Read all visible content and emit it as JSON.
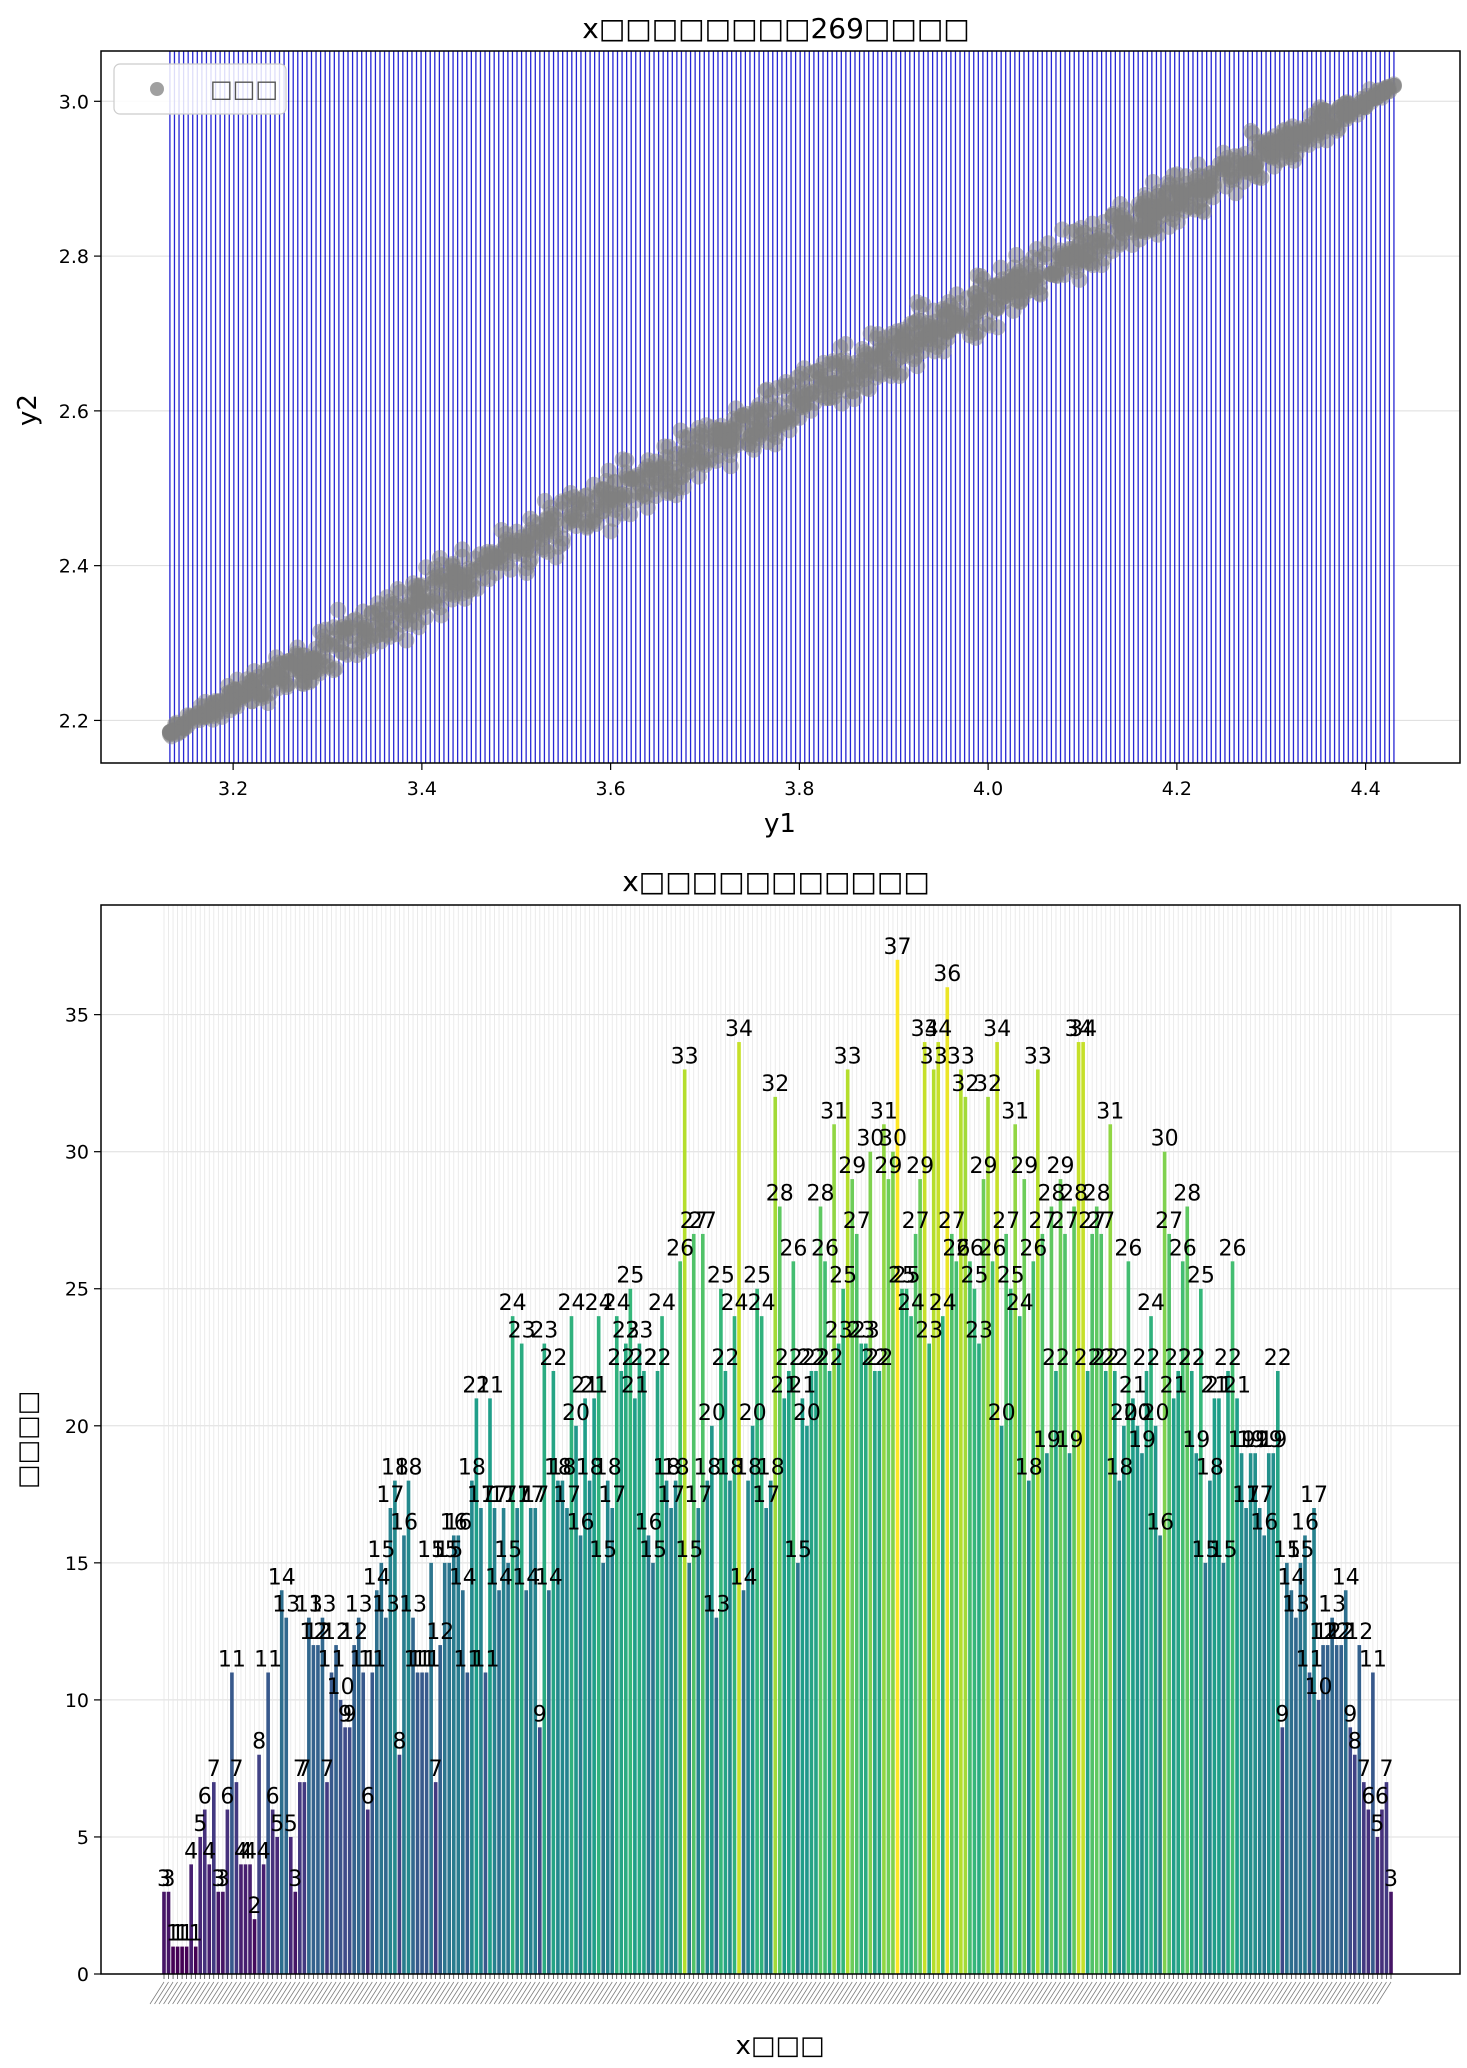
{
  "chart_data": [
    {
      "type": "scatter",
      "title": "x□□□□□□□□269□□□□",
      "xlabel": "y1",
      "ylabel": "y2",
      "xlim": [
        3.06,
        4.5
      ],
      "ylim": [
        2.145,
        3.065
      ],
      "xticks": [
        "3.2",
        "3.4",
        "3.6",
        "3.8",
        "4.0",
        "4.2",
        "4.4"
      ],
      "yticks": [
        "2.2",
        "2.4",
        "2.6",
        "2.8",
        "3.0"
      ],
      "grid": true,
      "legend": {
        "label": "□□□",
        "placement": "top-left"
      },
      "point_color": "#808080",
      "vline_color": "#0000cc",
      "vline_count": 269,
      "vline_range": [
        3.133,
        4.43
      ],
      "trend": {
        "x_range": [
          3.133,
          4.43
        ],
        "y_start": 2.185,
        "y_end": 3.02,
        "band_half_width": 0.05
      }
    },
    {
      "type": "bar",
      "title": "x□□□□□□□□□□□",
      "xlabel": "x□□□",
      "ylabel": "□□□□",
      "ylim": [
        0,
        39
      ],
      "yticks": [
        "0",
        "5",
        "10",
        "15",
        "20",
        "25",
        "30",
        "35"
      ],
      "grid": true,
      "colormap": "viridis",
      "values": [
        3,
        3,
        1,
        1,
        1,
        1,
        4,
        1,
        5,
        6,
        4,
        7,
        3,
        3,
        6,
        11,
        7,
        4,
        4,
        4,
        2,
        8,
        4,
        11,
        6,
        5,
        14,
        13,
        5,
        3,
        7,
        7,
        13,
        12,
        12,
        13,
        7,
        11,
        12,
        10,
        9,
        9,
        12,
        13,
        11,
        6,
        11,
        14,
        15,
        13,
        17,
        18,
        8,
        16,
        18,
        13,
        11,
        11,
        11,
        15,
        7,
        12,
        15,
        15,
        16,
        16,
        14,
        11,
        18,
        21,
        17,
        11,
        21,
        17,
        14,
        17,
        15,
        24,
        17,
        23,
        14,
        17,
        17,
        9,
        23,
        14,
        22,
        18,
        18,
        17,
        24,
        20,
        16,
        21,
        18,
        21,
        24,
        15,
        18,
        17,
        24,
        22,
        23,
        25,
        21,
        23,
        22,
        16,
        15,
        22,
        24,
        18,
        17,
        18,
        26,
        33,
        15,
        27,
        17,
        27,
        18,
        20,
        13,
        25,
        22,
        18,
        24,
        34,
        14,
        18,
        20,
        25,
        24,
        17,
        18,
        32,
        28,
        21,
        22,
        26,
        15,
        21,
        20,
        22,
        22,
        28,
        26,
        22,
        31,
        23,
        25,
        33,
        29,
        27,
        23,
        23,
        30,
        22,
        22,
        31,
        29,
        30,
        37,
        25,
        25,
        24,
        27,
        29,
        34,
        23,
        33,
        34,
        24,
        36,
        27,
        26,
        33,
        32,
        26,
        25,
        23,
        29,
        32,
        26,
        34,
        20,
        27,
        25,
        31,
        24,
        29,
        18,
        26,
        33,
        27,
        19,
        28,
        22,
        29,
        27,
        19,
        28,
        34,
        34,
        22,
        27,
        28,
        27,
        22,
        31,
        22,
        18,
        20,
        26,
        21,
        20,
        19,
        22,
        24,
        20,
        16,
        30,
        27,
        21,
        22,
        26,
        28,
        22,
        19,
        25,
        15,
        18,
        21,
        21,
        15,
        22,
        26,
        21,
        19,
        17,
        19,
        19,
        17,
        16,
        19,
        19,
        22,
        9,
        15,
        14,
        13,
        15,
        16,
        11,
        17,
        10,
        12,
        12,
        13,
        12,
        12,
        14,
        9,
        8,
        12,
        7,
        6,
        11,
        5,
        6,
        7,
        3
      ]
    }
  ]
}
